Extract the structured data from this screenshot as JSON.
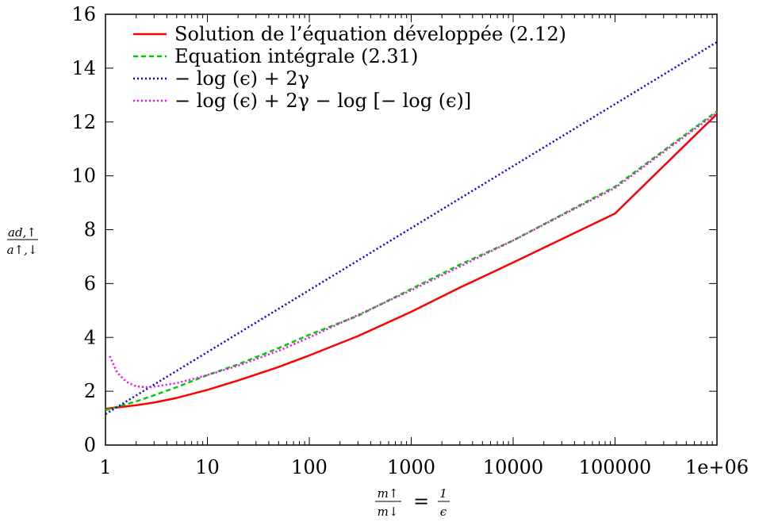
{
  "chart_data": {
    "type": "line",
    "x_scale": "log",
    "xlim": [
      1,
      1000000
    ],
    "ylim": [
      0,
      16
    ],
    "x_ticks": [
      1,
      10,
      100,
      1000,
      10000,
      100000,
      1000000
    ],
    "x_tick_labels": [
      "1",
      "10",
      "100",
      "1000",
      "10000",
      "100000",
      "1e+06"
    ],
    "y_ticks": [
      0,
      2,
      4,
      6,
      8,
      10,
      12,
      14,
      16
    ],
    "y_tick_labels": [
      "0",
      "2",
      "4",
      "6",
      "8",
      "10",
      "12",
      "14",
      "16"
    ],
    "xlabel": {
      "num": "m↑",
      "den": "m↓",
      "eq": "=",
      "rhs_num": "1",
      "rhs_den": "ϵ"
    },
    "ylabel": {
      "num": "ad,↑",
      "den": "a↑,↓"
    },
    "grid": false,
    "legend_position": "top-left",
    "series": [
      {
        "name": "Solution de l’équation développée (2.12)",
        "color": "#ff0000",
        "dash": "solid",
        "x": [
          1,
          2,
          3,
          5,
          10,
          20,
          50,
          100,
          300,
          1000,
          3000,
          10000,
          100000,
          1000000
        ],
        "y": [
          1.35,
          1.48,
          1.58,
          1.75,
          2.05,
          2.4,
          2.9,
          3.33,
          4.05,
          4.95,
          5.85,
          6.78,
          8.6,
          12.3
        ]
      },
      {
        "name": "Equation intégrale (2.31)",
        "color": "#00cc00",
        "dash": "dashed",
        "x": [
          1,
          2,
          3,
          5,
          10,
          20,
          50,
          100,
          300,
          1000,
          3000,
          10000,
          100000,
          1000000
        ],
        "y": [
          1.3,
          1.62,
          1.85,
          2.15,
          2.6,
          3.0,
          3.6,
          4.1,
          4.8,
          5.8,
          6.7,
          7.6,
          9.6,
          12.4
        ]
      },
      {
        "name": "− log (ϵ) + 2γ",
        "color": "#0000ff",
        "dash": "dotted",
        "x": [
          1,
          1000000
        ],
        "y": [
          1.15,
          14.97
        ]
      },
      {
        "name": "− log (ϵ) + 2γ − log [− log (ϵ)]",
        "color": "#ff00ff",
        "dash": "dotted",
        "x": [
          1.1,
          1.3,
          1.6,
          2,
          2.5,
          3,
          5,
          10,
          20,
          50,
          100,
          1000,
          10000,
          100000,
          1000000
        ],
        "y": [
          3.3,
          2.7,
          2.35,
          2.18,
          2.15,
          2.17,
          2.3,
          2.6,
          2.95,
          3.5,
          4.0,
          5.75,
          7.6,
          9.55,
          12.35
        ]
      }
    ]
  }
}
